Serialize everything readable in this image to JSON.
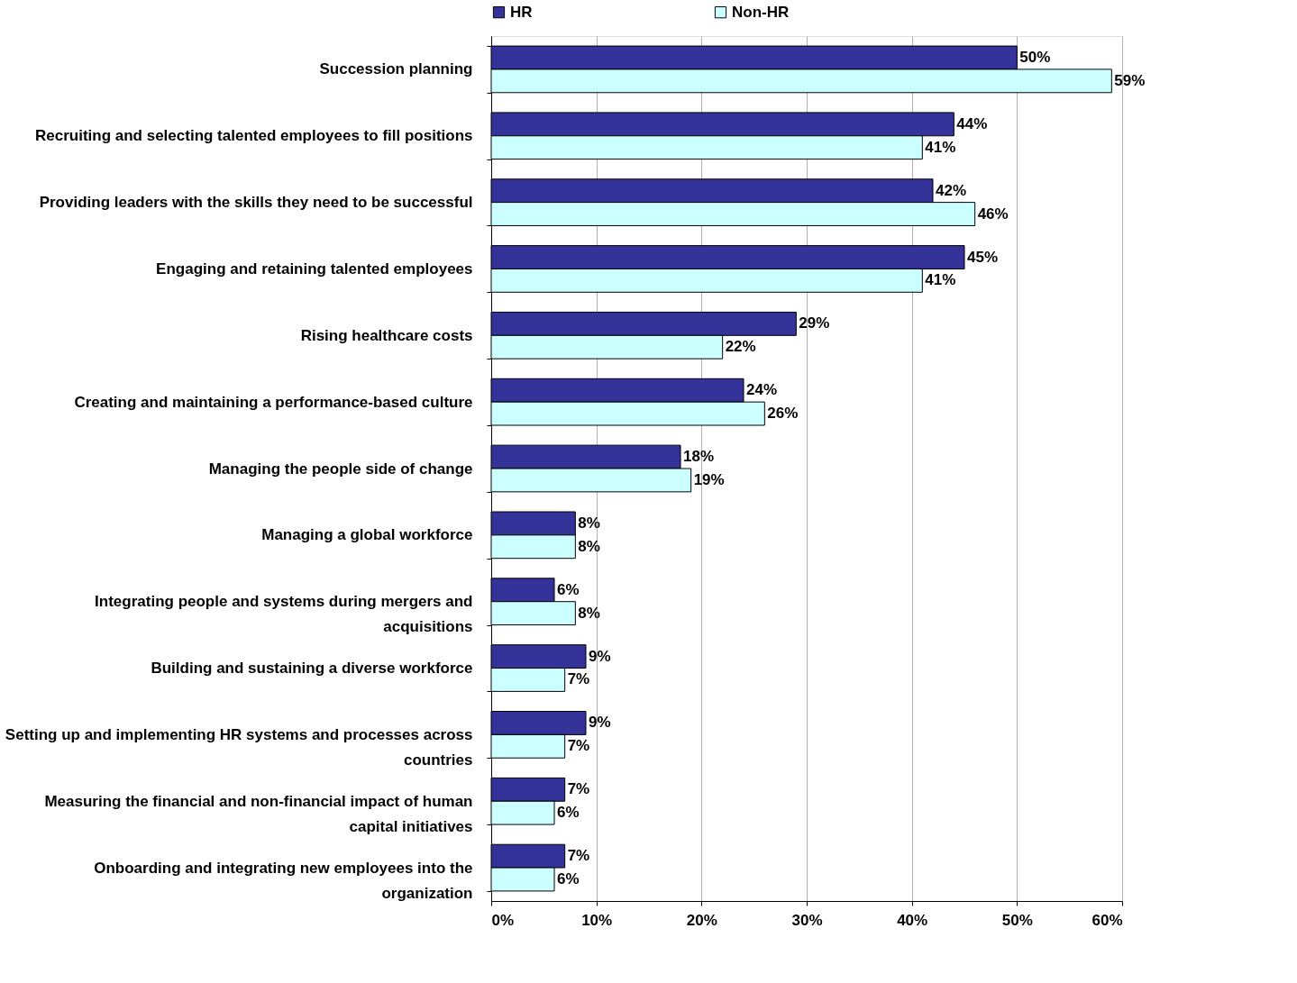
{
  "chart_data": {
    "type": "bar",
    "orientation": "horizontal",
    "categories": [
      "Succession planning",
      "Recruiting and selecting talented employees to fill positions",
      "Providing leaders with the skills they need to be successful",
      "Engaging and retaining talented employees",
      "Rising healthcare costs",
      "Creating and maintaining a performance-based culture",
      "Managing the people side of change",
      "Managing a global workforce",
      "Integrating people and systems during mergers and acquisitions",
      "Building and sustaining a diverse workforce",
      "Setting up and implementing HR systems and processes across countries",
      "Measuring the financial and non-financial impact of human capital initiatives",
      "Onboarding and integrating new employees into the organization"
    ],
    "series": [
      {
        "name": "HR",
        "color": "#333399",
        "values": [
          50,
          44,
          42,
          45,
          29,
          24,
          18,
          8,
          6,
          9,
          9,
          7,
          7
        ],
        "value_labels": [
          "50%",
          "44%",
          "42%",
          "45%",
          "29%",
          "24%",
          "18%",
          "8%",
          "6%",
          "9%",
          "9%",
          "7%",
          "7%"
        ]
      },
      {
        "name": "Non-HR",
        "color": "#ccffff",
        "values": [
          59,
          41,
          46,
          41,
          22,
          26,
          19,
          8,
          8,
          7,
          7,
          6,
          6
        ],
        "value_labels": [
          "59%",
          "41%",
          "46%",
          "41%",
          "22%",
          "26%",
          "19%",
          "8%",
          "8%",
          "7%",
          "7%",
          "6%",
          "6%"
        ]
      }
    ],
    "xlim": [
      0,
      60
    ],
    "xticks": [
      {
        "value": 0,
        "label": "0%"
      },
      {
        "value": 10,
        "label": "10%"
      },
      {
        "value": 20,
        "label": "20%"
      },
      {
        "value": 30,
        "label": "30%"
      },
      {
        "value": 40,
        "label": "40%"
      },
      {
        "value": 50,
        "label": "50%"
      },
      {
        "value": 60,
        "label": "60%"
      }
    ],
    "grid": "x",
    "legend": "top"
  }
}
